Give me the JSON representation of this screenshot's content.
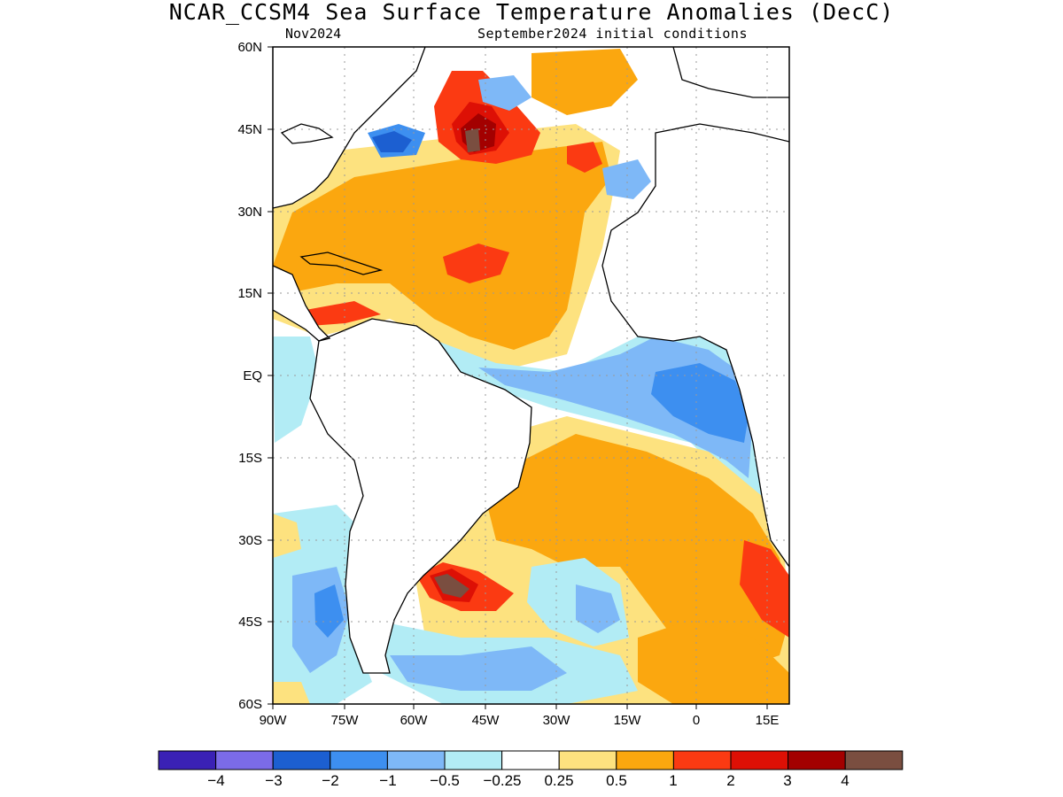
{
  "title": "NCAR_CCSM4 Sea Surface Temperature Anomalies (DecC)",
  "subtitle_left": "Nov2024",
  "subtitle_right": "September2024 initial conditions",
  "lat_labels": [
    "60N",
    "45N",
    "30N",
    "15N",
    "EQ",
    "15S",
    "30S",
    "45S",
    "60S"
  ],
  "lon_labels": [
    "90W",
    "75W",
    "60W",
    "45W",
    "30W",
    "15W",
    "0",
    "15E"
  ],
  "colorbar": {
    "colors": [
      "#3a21b5",
      "#7b6be8",
      "#1c5fd1",
      "#3d8ff0",
      "#7eb8f7",
      "#b2ecf5",
      "#ffffff",
      "#fde27f",
      "#fba70f",
      "#fb3a12",
      "#dd1005",
      "#a30000",
      "#7a4e40"
    ],
    "labels": [
      "−4",
      "−3",
      "−2",
      "−1",
      "−0.5",
      "−0.25",
      "0.25",
      "0.5",
      "1",
      "2",
      "3",
      "4"
    ]
  },
  "colors": {
    "land": "#ffffff",
    "coast": "#000000",
    "grid": "#9a9a9a"
  }
}
